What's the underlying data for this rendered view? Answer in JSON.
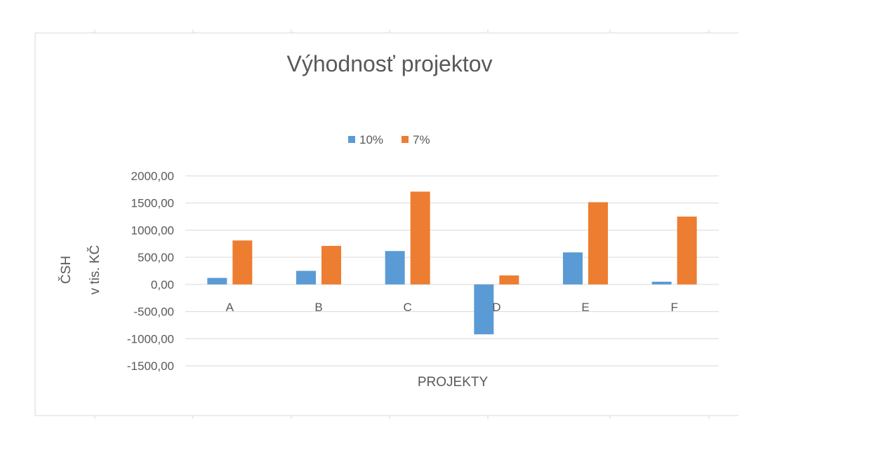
{
  "chart_data": {
    "type": "bar",
    "title": "Výhodnosť projektov",
    "xlabel": "PROJEKTY",
    "ylabel": [
      "ČSH",
      "v tis. KČ"
    ],
    "categories": [
      "A",
      "B",
      "C",
      "D",
      "E",
      "F"
    ],
    "series": [
      {
        "name": "10%",
        "color": "#5b9bd5",
        "values": [
          120,
          250,
          615,
          -920,
          590,
          50
        ]
      },
      {
        "name": "7%",
        "color": "#ed7d31",
        "values": [
          810,
          710,
          1710,
          165,
          1515,
          1250
        ]
      }
    ],
    "y_ticks": [
      "2000,00",
      "1500,00",
      "1000,00",
      "500,00",
      "0,00",
      "-500,00",
      "-1000,00",
      "-1500,00"
    ],
    "ylim": [
      -1500,
      2000
    ],
    "grid": true,
    "legend": "top-center"
  }
}
